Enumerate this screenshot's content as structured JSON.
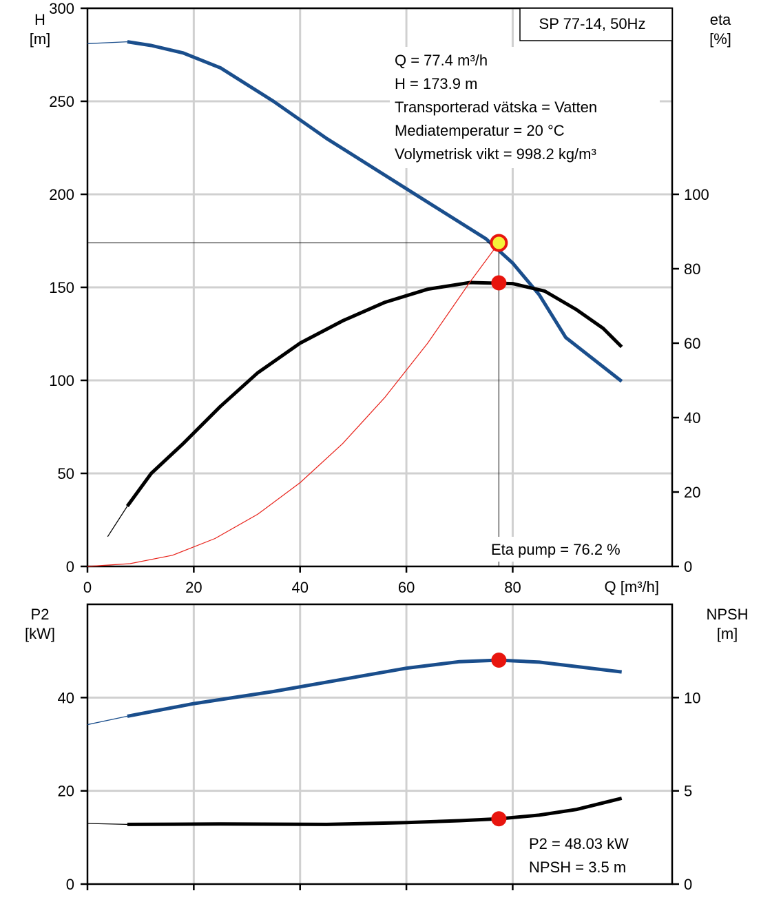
{
  "chart_data": [
    {
      "type": "line",
      "title": "SP 77-14, 50Hz",
      "xlabel": "Q [m³/h]",
      "ylabel_left": [
        "H",
        "[m]"
      ],
      "ylabel_right": [
        "eta",
        "[%]"
      ],
      "x_ticks": [
        "0",
        "20",
        "40",
        "60",
        "80"
      ],
      "y_left_ticks": [
        "0",
        "50",
        "100",
        "150",
        "200",
        "250",
        "300"
      ],
      "y_right_ticks": [
        "0",
        "20",
        "40",
        "60",
        "80",
        "100"
      ],
      "xlim": [
        0,
        110
      ],
      "ylim_left": [
        0,
        300
      ],
      "ylim_right": [
        0,
        150
      ],
      "grid": true,
      "info_lines": [
        "Q = 77.4 m³/h",
        "H = 173.9 m",
        "Transporterad vätska = Vatten",
        "Mediatemperatur = 20 °C",
        "Volymetrisk vikt = 998.2 kg/m³"
      ],
      "annotation": "Eta pump = 76.2 %",
      "operating_point": {
        "q": 77.4,
        "h": 173.9,
        "eta": 76.2
      },
      "series": [
        {
          "axis": "left",
          "color": "#1a4e8c",
          "style": "thick",
          "values": [
            [
              7.5,
              282
            ],
            [
              12,
              280
            ],
            [
              18,
              276
            ],
            [
              25,
              268
            ],
            [
              35,
              250
            ],
            [
              45,
              230
            ],
            [
              55,
              212
            ],
            [
              65,
              194
            ],
            [
              75,
              176
            ],
            [
              80,
              163
            ],
            [
              85,
              146
            ],
            [
              90,
              123
            ],
            [
              100.5,
              99.5
            ]
          ],
          "extension": [
            [
              0,
              281
            ],
            [
              7.5,
              282
            ]
          ]
        },
        {
          "axis": "right",
          "color": "#000000",
          "style": "thick",
          "values": [
            [
              7.5,
              16.2
            ],
            [
              12,
              25
            ],
            [
              18,
              33
            ],
            [
              25,
              43
            ],
            [
              32,
              52
            ],
            [
              40,
              60
            ],
            [
              48,
              66
            ],
            [
              56,
              71
            ],
            [
              64,
              74.5
            ],
            [
              72,
              76.3
            ],
            [
              80,
              76
            ],
            [
              86,
              74
            ],
            [
              92,
              69
            ],
            [
              97,
              64
            ],
            [
              100.5,
              59
            ]
          ],
          "extension": [
            [
              3.8,
              8
            ],
            [
              7.5,
              16.2
            ]
          ]
        },
        {
          "axis": "left",
          "color": "#e8221a",
          "style": "thin",
          "values": [
            [
              0,
              0
            ],
            [
              8,
              1.5
            ],
            [
              16,
              6
            ],
            [
              24,
              15
            ],
            [
              32,
              28
            ],
            [
              40,
              45
            ],
            [
              48,
              66
            ],
            [
              56,
              91
            ],
            [
              64,
              120
            ],
            [
              72,
              153
            ],
            [
              77.4,
              173.9
            ]
          ]
        }
      ]
    },
    {
      "type": "line",
      "ylabel_left": [
        "P2",
        "[kW]"
      ],
      "ylabel_right": [
        "NPSH",
        "[m]"
      ],
      "x_ticks": [],
      "y_left_ticks": [
        "0",
        "20",
        "40"
      ],
      "y_right_ticks": [
        "0",
        "5",
        "10"
      ],
      "xlim": [
        0,
        110
      ],
      "ylim_left": [
        0,
        60
      ],
      "ylim_right": [
        0,
        15
      ],
      "grid": true,
      "info_lines": [
        "P2 = 48.03 kW",
        "NPSH = 3.5 m"
      ],
      "operating_point": {
        "q": 77.4,
        "p2": 48.03,
        "npsh": 3.5
      },
      "series": [
        {
          "axis": "left",
          "color": "#1a4e8c",
          "style": "thick",
          "values": [
            [
              7.5,
              36
            ],
            [
              20,
              38.7
            ],
            [
              35,
              41.3
            ],
            [
              50,
              44.3
            ],
            [
              60,
              46.3
            ],
            [
              70,
              47.7
            ],
            [
              77.4,
              48.03
            ],
            [
              85,
              47.6
            ],
            [
              100.5,
              45.5
            ]
          ],
          "extension": [
            [
              0,
              34.2
            ],
            [
              7.5,
              36
            ]
          ]
        },
        {
          "axis": "right",
          "color": "#000000",
          "style": "thick",
          "values": [
            [
              7.5,
              3.2
            ],
            [
              25,
              3.22
            ],
            [
              45,
              3.2
            ],
            [
              60,
              3.3
            ],
            [
              70,
              3.4
            ],
            [
              77.4,
              3.5
            ],
            [
              85,
              3.7
            ],
            [
              92,
              4.0
            ],
            [
              100.5,
              4.6
            ]
          ],
          "extension": [
            [
              0,
              3.25
            ],
            [
              7.5,
              3.2
            ]
          ]
        }
      ]
    }
  ]
}
